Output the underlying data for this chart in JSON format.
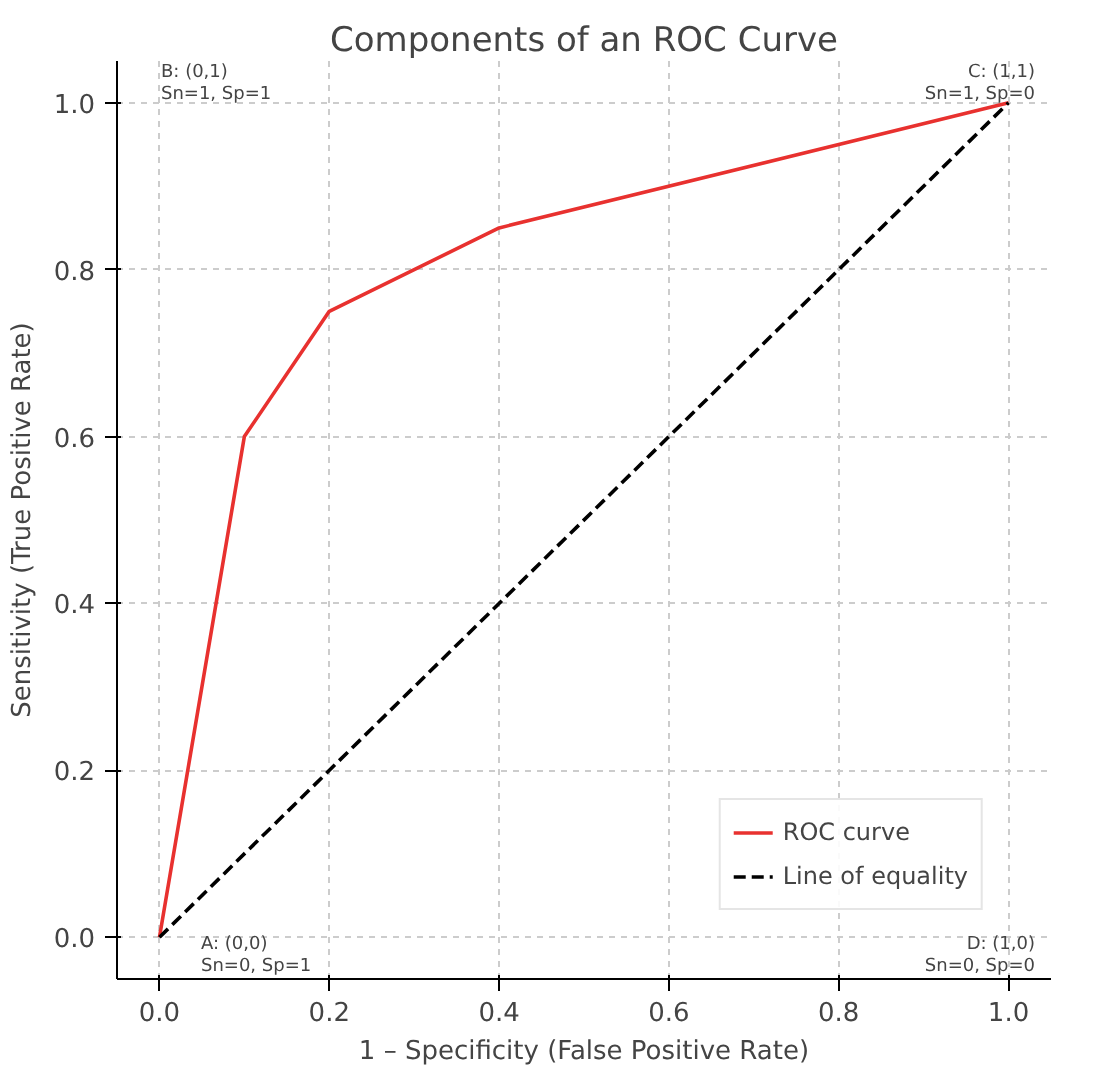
{
  "chart_data": {
    "type": "line",
    "title": "Components of an ROC Curve",
    "xlabel": "1 – Specificity (False Positive Rate)",
    "ylabel": "Sensitivity (True Positive Rate)",
    "series": [
      {
        "name": "ROC curve",
        "color": "#e8312f",
        "x": [
          0,
          0.1,
          0.2,
          0.4,
          1
        ],
        "values": [
          0,
          0.6,
          0.75,
          0.85,
          1
        ],
        "line_style": "solid"
      },
      {
        "name": "Line of equality",
        "color": "#000000",
        "x": [
          0,
          1
        ],
        "values": [
          0,
          1
        ],
        "line_style": "dashed"
      }
    ],
    "annotations": [
      "A: (0,0)\nSn=0, Sp=1",
      "B: (0,1)\nSn=1, Sp=1",
      "C: (1,1)\nSn=1, Sp=0",
      "D: (1,0)\nSn=0, Sp=0"
    ],
    "xlim": [
      -0.05,
      1.05
    ],
    "ylim": [
      -0.05,
      1.05
    ],
    "xticks": [
      {
        "value": 0,
        "label": "0.0"
      },
      {
        "value": 0.2,
        "label": "0.2"
      },
      {
        "value": 0.4,
        "label": "0.4"
      },
      {
        "value": 0.6,
        "label": "0.6"
      },
      {
        "value": 0.8,
        "label": "0.8"
      },
      {
        "value": 1,
        "label": "1.0"
      }
    ],
    "yticks": [
      {
        "value": 0,
        "label": "0.0"
      },
      {
        "value": 0.2,
        "label": "0.2"
      },
      {
        "value": 0.4,
        "label": "0.4"
      },
      {
        "value": 0.6,
        "label": "0.6"
      },
      {
        "value": 0.8,
        "label": "0.8"
      },
      {
        "value": 1,
        "label": "1.0"
      }
    ],
    "grid": true,
    "legend": "bottom right",
    "marker": "none"
  }
}
